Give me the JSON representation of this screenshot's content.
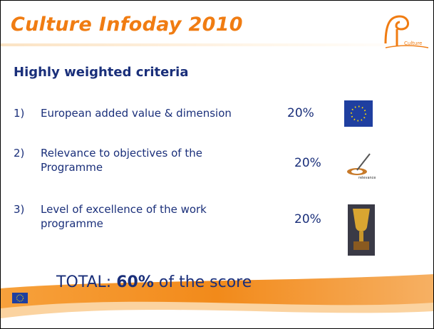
{
  "header": {
    "title": "Culture Infoday 2010",
    "logo_text": "Culture"
  },
  "heading": "Highly weighted criteria",
  "criteria": [
    {
      "number": "1)",
      "lines": [
        "European added value & dimension"
      ],
      "weight": "20%"
    },
    {
      "number": "2)",
      "lines": [
        "Relevance to objectives of the",
        "Programme"
      ],
      "weight": "20%",
      "icon_text": "relevance"
    },
    {
      "number": "3)",
      "lines": [
        "Level of excellence of the work",
        "programme"
      ],
      "weight": "20%"
    }
  ],
  "total": {
    "prefix": "TOTAL: ",
    "value": "60%",
    "suffix": " of the score"
  }
}
